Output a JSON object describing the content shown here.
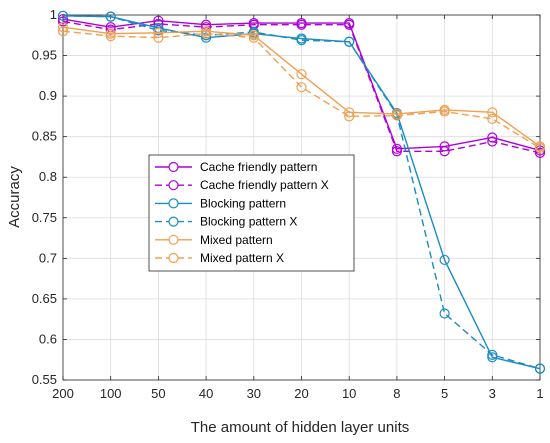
{
  "chart_data": {
    "type": "line",
    "xlabel": "The amount of hidden layer units",
    "ylabel": "Accuracy",
    "categories": [
      "200",
      "100",
      "50",
      "40",
      "30",
      "20",
      "10",
      "8",
      "5",
      "3",
      "1"
    ],
    "ylim": [
      0.55,
      1.0
    ],
    "yticks": [
      0.55,
      0.6,
      0.65,
      0.7,
      0.75,
      0.8,
      0.85,
      0.9,
      0.95,
      1
    ],
    "ytick_labels": [
      "0.55",
      "0.6",
      "0.65",
      "0.7",
      "0.75",
      "0.8",
      "0.85",
      "0.9",
      "0.95",
      "1"
    ],
    "grid": true,
    "legend_position": "center-left",
    "series": [
      {
        "name": "Cache friendly pattern",
        "color": "#b000d8",
        "dashed": false,
        "marker": "circle",
        "values": [
          0.995,
          0.985,
          0.993,
          0.988,
          0.99,
          0.99,
          0.99,
          0.835,
          0.838,
          0.849,
          0.833
        ]
      },
      {
        "name": "Cache friendly pattern X",
        "color": "#b000d8",
        "dashed": true,
        "marker": "circle",
        "values": [
          0.992,
          0.982,
          0.989,
          0.985,
          0.988,
          0.988,
          0.988,
          0.832,
          0.832,
          0.844,
          0.83
        ]
      },
      {
        "name": "Blocking pattern",
        "color": "#1a8cc4",
        "dashed": false,
        "marker": "circle",
        "values": [
          0.999,
          0.998,
          0.984,
          0.972,
          0.977,
          0.971,
          0.967,
          0.879,
          0.698,
          0.578,
          0.564
        ]
      },
      {
        "name": "Blocking pattern X",
        "color": "#1a8cc4",
        "dashed": true,
        "marker": "circle",
        "values": [
          0.999,
          0.998,
          0.981,
          0.975,
          0.979,
          0.969,
          0.967,
          0.877,
          0.632,
          0.581,
          0.564
        ]
      },
      {
        "name": "Mixed pattern",
        "color": "#f0a050",
        "dashed": false,
        "marker": "circle",
        "values": [
          0.985,
          0.977,
          0.978,
          0.98,
          0.975,
          0.927,
          0.88,
          0.878,
          0.883,
          0.88,
          0.838
        ]
      },
      {
        "name": "Mixed pattern X",
        "color": "#f0a050",
        "dashed": true,
        "marker": "circle",
        "values": [
          0.98,
          0.974,
          0.972,
          0.977,
          0.972,
          0.911,
          0.875,
          0.876,
          0.881,
          0.872,
          0.836
        ]
      }
    ]
  }
}
